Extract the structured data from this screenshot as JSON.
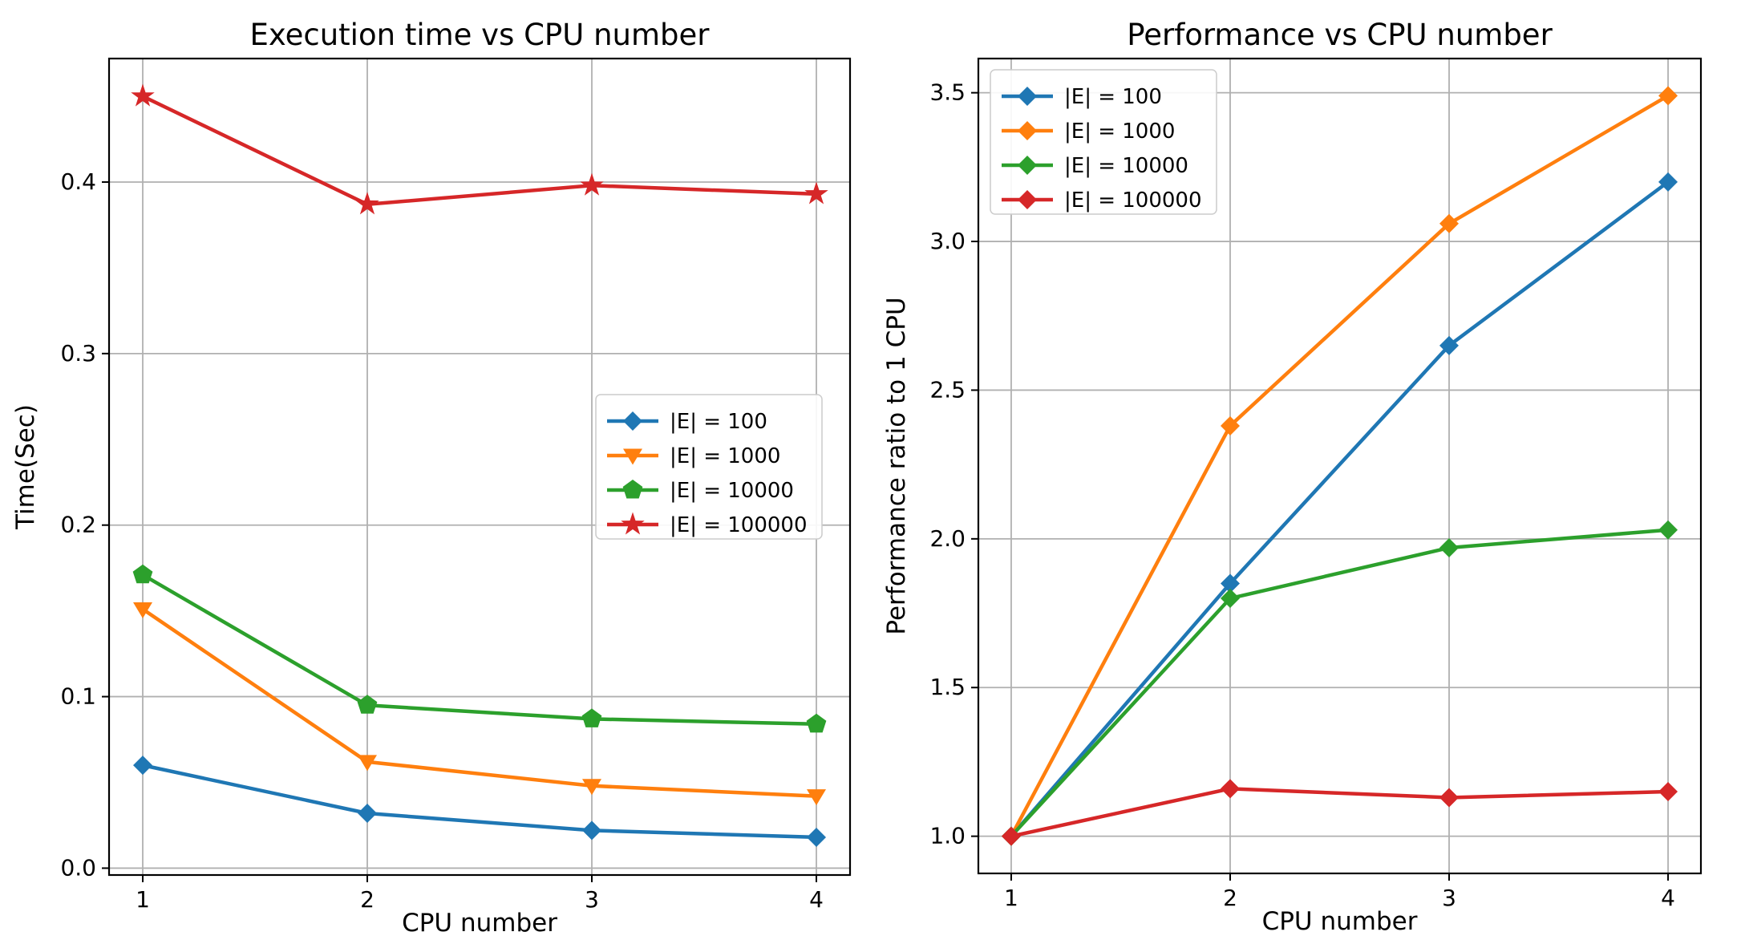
{
  "background": "#ffffff",
  "grid_color": "#b0b0b0",
  "spine_color": "#000000",
  "text_color": "#000000",
  "chart_data": [
    {
      "type": "line",
      "title": "Execution time vs CPU number",
      "xlabel": "CPU number",
      "ylabel": "Time(Sec)",
      "x": [
        1,
        2,
        3,
        4
      ],
      "xticks": [
        1,
        2,
        3,
        4
      ],
      "xtick_labels": [
        "1",
        "2",
        "3",
        "4"
      ],
      "yticks": [
        0.0,
        0.1,
        0.2,
        0.3,
        0.4
      ],
      "ytick_labels": [
        "0.0",
        "0.1",
        "0.2",
        "0.3",
        "0.4"
      ],
      "xlim": [
        0.85,
        4.15
      ],
      "ylim": [
        -0.004,
        0.472
      ],
      "grid": true,
      "legend_position": "center-right",
      "series": [
        {
          "name": "|E| = 100",
          "color": "#1f77b4",
          "marker": "diamond",
          "values": [
            0.06,
            0.032,
            0.022,
            0.018
          ]
        },
        {
          "name": "|E| = 1000",
          "color": "#ff7f0e",
          "marker": "triangle-down",
          "values": [
            0.151,
            0.062,
            0.048,
            0.042
          ]
        },
        {
          "name": "|E| = 10000",
          "color": "#2ca02c",
          "marker": "pentagon",
          "values": [
            0.171,
            0.095,
            0.087,
            0.084
          ]
        },
        {
          "name": "|E| = 100000",
          "color": "#d62728",
          "marker": "star",
          "values": [
            0.45,
            0.387,
            0.398,
            0.393
          ]
        }
      ]
    },
    {
      "type": "line",
      "title": "Performance vs CPU number",
      "xlabel": "CPU number",
      "ylabel": "Performance ratio to 1 CPU",
      "x": [
        1,
        2,
        3,
        4
      ],
      "xticks": [
        1,
        2,
        3,
        4
      ],
      "xtick_labels": [
        "1",
        "2",
        "3",
        "4"
      ],
      "yticks": [
        1.0,
        1.5,
        2.0,
        2.5,
        3.0,
        3.5
      ],
      "ytick_labels": [
        "1.0",
        "1.5",
        "2.0",
        "2.5",
        "3.0",
        "3.5"
      ],
      "xlim": [
        0.85,
        4.15
      ],
      "ylim": [
        0.875,
        3.615
      ],
      "grid": true,
      "legend_position": "upper-left",
      "series": [
        {
          "name": "|E| = 100",
          "color": "#1f77b4",
          "marker": "diamond",
          "values": [
            1.0,
            1.85,
            2.65,
            3.2
          ]
        },
        {
          "name": "|E| = 1000",
          "color": "#ff7f0e",
          "marker": "diamond",
          "values": [
            1.0,
            2.38,
            3.06,
            3.49
          ]
        },
        {
          "name": "|E| = 10000",
          "color": "#2ca02c",
          "marker": "diamond",
          "values": [
            1.0,
            1.8,
            1.97,
            2.03
          ]
        },
        {
          "name": "|E| = 100000",
          "color": "#d62728",
          "marker": "diamond",
          "values": [
            1.0,
            1.16,
            1.13,
            1.15
          ]
        }
      ]
    }
  ]
}
